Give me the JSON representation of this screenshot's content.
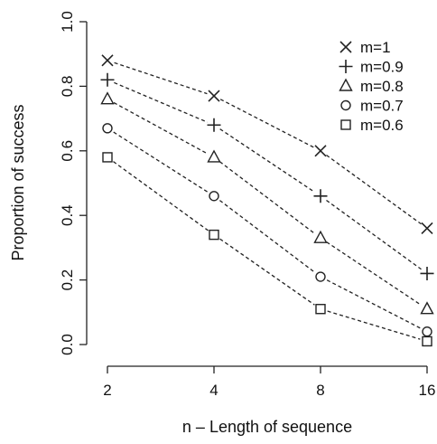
{
  "chart_data": {
    "type": "line",
    "title": "",
    "xlabel": "n – Length of sequence",
    "ylabel": "Proportion of success",
    "x": [
      2,
      4,
      8,
      16
    ],
    "xticks": [
      "2",
      "4",
      "8",
      "16"
    ],
    "xscale": "log2",
    "ylim": [
      0.0,
      1.0
    ],
    "yticks": [
      "0.0",
      "0.2",
      "0.4",
      "0.6",
      "0.8",
      "1.0"
    ],
    "grid": false,
    "legend_position": "top-right",
    "series": [
      {
        "name": "m=1",
        "marker": "cross",
        "values": [
          0.88,
          0.77,
          0.6,
          0.36
        ]
      },
      {
        "name": "m=0.9",
        "marker": "plus",
        "values": [
          0.82,
          0.68,
          0.46,
          0.22
        ]
      },
      {
        "name": "m=0.8",
        "marker": "triangle",
        "values": [
          0.76,
          0.58,
          0.33,
          0.11
        ]
      },
      {
        "name": "m=0.7",
        "marker": "circle",
        "values": [
          0.67,
          0.46,
          0.21,
          0.04
        ]
      },
      {
        "name": "m=0.6",
        "marker": "square",
        "values": [
          0.58,
          0.34,
          0.11,
          0.01
        ]
      }
    ]
  }
}
